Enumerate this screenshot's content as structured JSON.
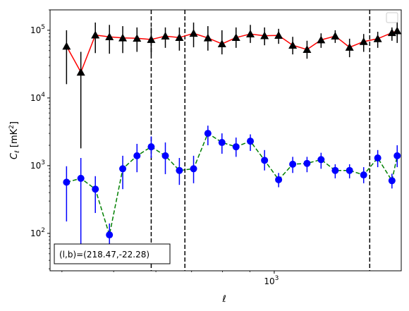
{
  "chart_data": {
    "type": "scatter",
    "title": "",
    "xlabel": "ℓ",
    "ylabel": "C_ℓ [mK²]",
    "x_scale": "log",
    "y_scale": "log",
    "xlim": [
      380,
      1730
    ],
    "ylim": [
      28,
      200000
    ],
    "x_tick_labels": [
      {
        "value": 1000,
        "base": "10",
        "exp": "3"
      }
    ],
    "y_tick_labels": [
      {
        "value": 100,
        "base": "10",
        "exp": "2"
      },
      {
        "value": 1000,
        "base": "10",
        "exp": "3"
      },
      {
        "value": 10000,
        "base": "10",
        "exp": "4"
      },
      {
        "value": 100000,
        "base": "10",
        "exp": "5"
      }
    ],
    "vlines": [
      588,
      680,
      1510
    ],
    "annotation": "(l,b)=(218.47,-22.28)",
    "legend": {
      "position": "top-right",
      "entries": []
    },
    "colors": {
      "series_a": "#ff0000",
      "series_b": "#008000",
      "markers_a": "#000000",
      "markers_b": "#0000ff"
    },
    "series": [
      {
        "line_style": "solid",
        "marker": "triangle",
        "x": [
          408,
          434,
          462,
          491,
          520,
          553,
          588,
          625,
          664,
          706,
          751,
          798,
          848,
          902,
          959,
          1019,
          1083,
          1152,
          1224,
          1301,
          1384,
          1471,
          1563,
          1662,
          1700
        ],
        "y": [
          58000,
          24000,
          85000,
          80000,
          77000,
          76000,
          73000,
          82000,
          78000,
          90000,
          77000,
          63000,
          78000,
          88000,
          83000,
          84000,
          60000,
          52000,
          72000,
          82000,
          56000,
          68000,
          75000,
          92000,
          98000
        ],
        "err_low": [
          16000,
          1800,
          46000,
          45000,
          46000,
          48000,
          44000,
          55000,
          50000,
          56000,
          50000,
          44000,
          55000,
          65000,
          60000,
          63000,
          44000,
          38000,
          55000,
          65000,
          40000,
          48000,
          55000,
          70000,
          65000
        ],
        "err_high": [
          100000,
          48000,
          130000,
          120000,
          115000,
          110000,
          110000,
          110000,
          110000,
          130000,
          115000,
          100000,
          110000,
          120000,
          110000,
          105000,
          80000,
          70000,
          90000,
          100000,
          75000,
          88000,
          95000,
          110000,
          140000
        ]
      },
      {
        "line_style": "dashed",
        "marker": "circle",
        "x": [
          408,
          434,
          462,
          491,
          520,
          553,
          588,
          625,
          664,
          706,
          751,
          798,
          848,
          902,
          959,
          1019,
          1083,
          1152,
          1224,
          1301,
          1384,
          1471,
          1563,
          1662,
          1700
        ],
        "y": [
          570,
          650,
          450,
          95,
          900,
          1400,
          1900,
          1400,
          850,
          900,
          3000,
          2200,
          1900,
          2300,
          1200,
          620,
          1050,
          1080,
          1230,
          850,
          850,
          730,
          1300,
          600,
          1400
        ],
        "err_low": [
          150,
          40,
          200,
          55,
          450,
          800,
          1300,
          750,
          520,
          550,
          2000,
          1500,
          1350,
          1650,
          850,
          480,
          780,
          800,
          900,
          650,
          650,
          550,
          950,
          460,
          950
        ],
        "err_high": [
          980,
          1300,
          700,
          140,
          1400,
          2100,
          2700,
          2200,
          1300,
          1400,
          3900,
          3000,
          2600,
          2900,
          1700,
          780,
          1350,
          1350,
          1550,
          1050,
          1050,
          950,
          1700,
          760,
          2000
        ]
      }
    ]
  }
}
